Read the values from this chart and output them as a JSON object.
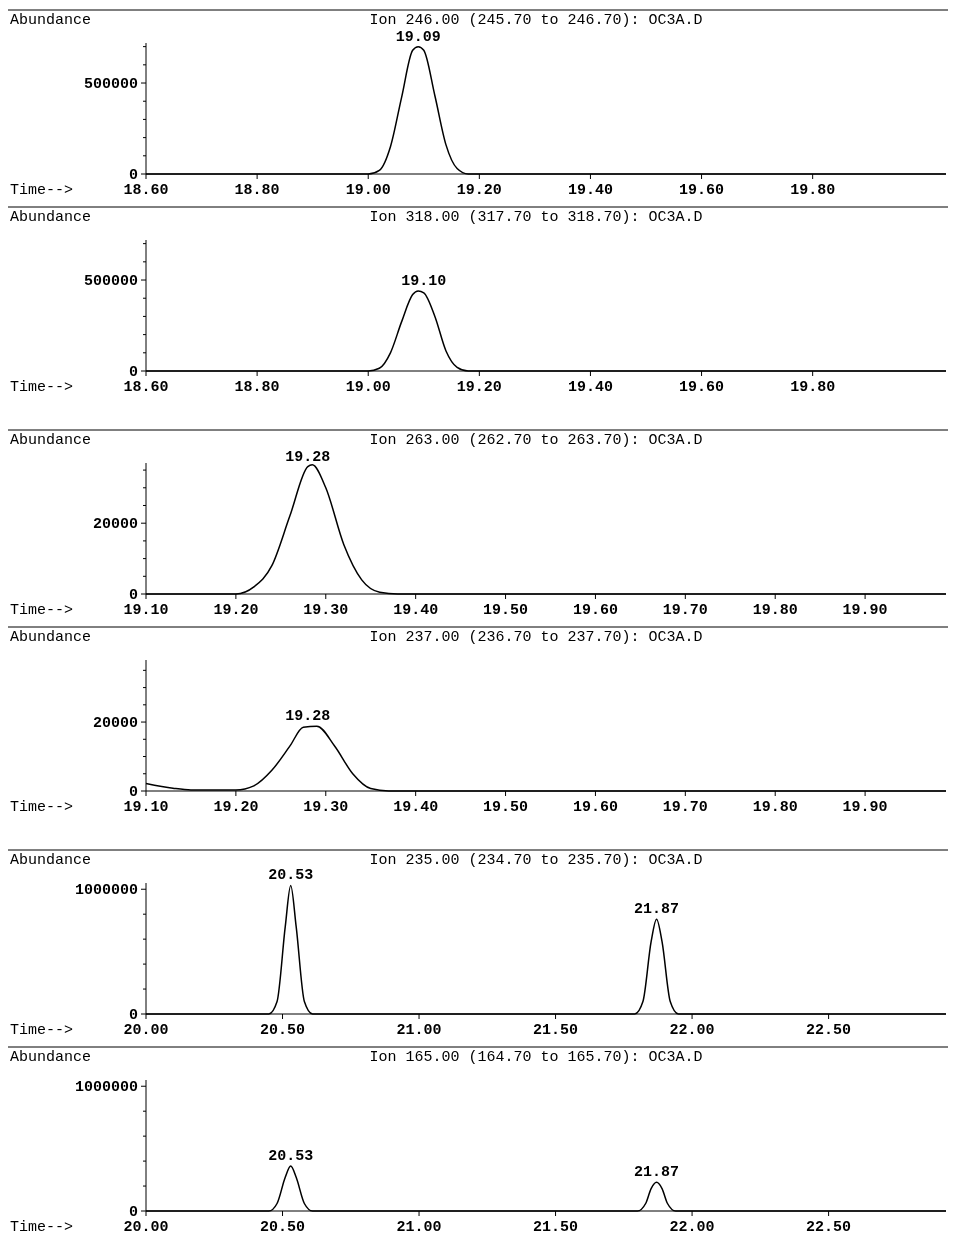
{
  "chart_data": [
    {
      "type": "line",
      "title": "Ion 246.00 (245.70 to 246.70): OC3A.D",
      "xlabel": "Time-->",
      "ylabel": "Abundance",
      "color": "#000000",
      "x": [
        18.6,
        19.0,
        19.02,
        19.04,
        19.06,
        19.08,
        19.09,
        19.1,
        19.12,
        19.14,
        19.16,
        19.18,
        20.04
      ],
      "values": [
        0,
        0,
        20000,
        150000,
        420000,
        680000,
        700000,
        680000,
        430000,
        160000,
        30000,
        0,
        0
      ],
      "xlim": [
        18.6,
        20.04
      ],
      "xticks": [
        {
          "value": 18.6,
          "label": "18.60"
        },
        {
          "value": 18.8,
          "label": "18.80"
        },
        {
          "value": 19.0,
          "label": "19.00"
        },
        {
          "value": 19.2,
          "label": "19.20"
        },
        {
          "value": 19.4,
          "label": "19.40"
        },
        {
          "value": 19.6,
          "label": "19.60"
        },
        {
          "value": 19.8,
          "label": "19.80"
        }
      ],
      "ylim": [
        0,
        720000
      ],
      "yticks": [
        0,
        {
          "value": 100000,
          "label": null
        },
        {
          "value": 200000,
          "label": null
        },
        {
          "value": 300000,
          "label": null
        },
        {
          "value": 400000,
          "label": null
        },
        500000,
        {
          "value": 600000,
          "label": null
        },
        {
          "value": 700000,
          "label": null
        }
      ],
      "annotations": [
        {
          "text": "19.09",
          "x": 19.09,
          "y": 700000
        }
      ]
    },
    {
      "type": "line",
      "title": "Ion 318.00 (317.70 to 318.70): OC3A.D",
      "xlabel": "Time-->",
      "ylabel": "Abundance",
      "color": "#000000",
      "x": [
        18.6,
        19.0,
        19.02,
        19.04,
        19.06,
        19.08,
        19.09,
        19.1,
        19.12,
        19.14,
        19.16,
        19.18,
        20.04
      ],
      "values": [
        0,
        0,
        15000,
        100000,
        270000,
        420000,
        440000,
        430000,
        300000,
        110000,
        20000,
        0,
        0
      ],
      "xlim": [
        18.6,
        20.04
      ],
      "xticks": [
        {
          "value": 18.6,
          "label": "18.60"
        },
        {
          "value": 18.8,
          "label": "18.80"
        },
        {
          "value": 19.0,
          "label": "19.00"
        },
        {
          "value": 19.2,
          "label": "19.20"
        },
        {
          "value": 19.4,
          "label": "19.40"
        },
        {
          "value": 19.6,
          "label": "19.60"
        },
        {
          "value": 19.8,
          "label": "19.80"
        }
      ],
      "ylim": [
        0,
        720000
      ],
      "yticks": [
        0,
        {
          "value": 100000,
          "label": null
        },
        {
          "value": 200000,
          "label": null
        },
        {
          "value": 300000,
          "label": null
        },
        {
          "value": 400000,
          "label": null
        },
        500000,
        {
          "value": 600000,
          "label": null
        },
        {
          "value": 700000,
          "label": null
        }
      ],
      "annotations": [
        {
          "text": "19.10",
          "x": 19.1,
          "y": 440000
        }
      ]
    },
    {
      "type": "line",
      "title": "Ion 263.00 (262.70 to 263.70): OC3A.D",
      "xlabel": "Time-->",
      "ylabel": "Abundance",
      "color": "#000000",
      "x": [
        19.1,
        19.2,
        19.22,
        19.24,
        19.26,
        19.28,
        19.285,
        19.3,
        19.32,
        19.34,
        19.36,
        19.38,
        19.99
      ],
      "values": [
        0,
        0,
        2000,
        8000,
        22000,
        36000,
        36500,
        30000,
        14000,
        4000,
        500,
        0,
        0
      ],
      "xlim": [
        19.1,
        19.99
      ],
      "xticks": [
        {
          "value": 19.1,
          "label": "19.10"
        },
        {
          "value": 19.2,
          "label": "19.20"
        },
        {
          "value": 19.3,
          "label": "19.30"
        },
        {
          "value": 19.4,
          "label": "19.40"
        },
        {
          "value": 19.5,
          "label": "19.50"
        },
        {
          "value": 19.6,
          "label": "19.60"
        },
        {
          "value": 19.7,
          "label": "19.70"
        },
        {
          "value": 19.8,
          "label": "19.80"
        },
        {
          "value": 19.9,
          "label": "19.90"
        }
      ],
      "ylim": [
        0,
        37000
      ],
      "yticks": [
        0,
        {
          "value": 5000,
          "label": null
        },
        {
          "value": 10000,
          "label": null
        },
        {
          "value": 15000,
          "label": null
        },
        20000,
        {
          "value": 25000,
          "label": null
        },
        {
          "value": 30000,
          "label": null
        },
        {
          "value": 35000,
          "label": null
        }
      ],
      "annotations": [
        {
          "text": "19.28",
          "x": 19.28,
          "y": 36000
        }
      ]
    },
    {
      "type": "line",
      "title": "Ion 237.00 (236.70 to 237.70): OC3A.D",
      "xlabel": "Time-->",
      "ylabel": "Abundance",
      "color": "#000000",
      "x": [
        19.1,
        19.13,
        19.15,
        19.2,
        19.22,
        19.24,
        19.26,
        19.275,
        19.29,
        19.31,
        19.33,
        19.35,
        19.37,
        19.99
      ],
      "values": [
        2200,
        800,
        300,
        300,
        1500,
        6000,
        13000,
        18500,
        18800,
        13000,
        5000,
        700,
        0,
        0
      ],
      "xlim": [
        19.1,
        19.99
      ],
      "xticks": [
        {
          "value": 19.1,
          "label": "19.10"
        },
        {
          "value": 19.2,
          "label": "19.20"
        },
        {
          "value": 19.3,
          "label": "19.30"
        },
        {
          "value": 19.4,
          "label": "19.40"
        },
        {
          "value": 19.5,
          "label": "19.50"
        },
        {
          "value": 19.6,
          "label": "19.60"
        },
        {
          "value": 19.7,
          "label": "19.70"
        },
        {
          "value": 19.8,
          "label": "19.80"
        },
        {
          "value": 19.9,
          "label": "19.90"
        }
      ],
      "ylim": [
        0,
        38000
      ],
      "yticks": [
        0,
        {
          "value": 5000,
          "label": null
        },
        {
          "value": 10000,
          "label": null
        },
        {
          "value": 15000,
          "label": null
        },
        20000,
        {
          "value": 25000,
          "label": null
        },
        {
          "value": 30000,
          "label": null
        },
        {
          "value": 35000,
          "label": null
        }
      ],
      "annotations": [
        {
          "text": "19.28",
          "x": 19.28,
          "y": 18800
        }
      ]
    },
    {
      "type": "line",
      "title": "Ion 235.00 (234.70 to 235.70): OC3A.D",
      "xlabel": "Time-->",
      "ylabel": "Abundance",
      "color": "#000000",
      "x": [
        20.0,
        20.45,
        20.48,
        20.51,
        20.53,
        20.55,
        20.58,
        20.61,
        21.79,
        21.82,
        21.85,
        21.87,
        21.89,
        21.92,
        21.95,
        22.93
      ],
      "values": [
        0,
        0,
        100000,
        700000,
        1030000,
        700000,
        100000,
        0,
        0,
        100000,
        580000,
        760000,
        580000,
        100000,
        0,
        0
      ],
      "xlim": [
        20.0,
        22.93
      ],
      "xticks": [
        {
          "value": 20.0,
          "label": "20.00"
        },
        {
          "value": 20.5,
          "label": "20.50"
        },
        {
          "value": 21.0,
          "label": "21.00"
        },
        {
          "value": 21.5,
          "label": "21.50"
        },
        {
          "value": 22.0,
          "label": "22.00"
        },
        {
          "value": 22.5,
          "label": "22.50"
        }
      ],
      "ylim": [
        0,
        1050000
      ],
      "yticks": [
        0,
        {
          "value": 200000,
          "label": null
        },
        {
          "value": 400000,
          "label": null
        },
        {
          "value": 600000,
          "label": null
        },
        {
          "value": 800000,
          "label": null
        },
        1000000
      ],
      "annotations": [
        {
          "text": "20.53",
          "x": 20.53,
          "y": 1030000
        },
        {
          "text": "21.87",
          "x": 21.87,
          "y": 760000
        }
      ]
    },
    {
      "type": "line",
      "title": "Ion 165.00 (164.70 to 165.70): OC3A.D",
      "xlabel": "Time-->",
      "ylabel": "Abundance",
      "color": "#000000",
      "x": [
        20.0,
        20.45,
        20.48,
        20.51,
        20.53,
        20.55,
        20.58,
        20.61,
        21.8,
        21.83,
        21.85,
        21.87,
        21.89,
        21.91,
        21.94,
        22.93
      ],
      "values": [
        0,
        0,
        60000,
        270000,
        360000,
        270000,
        60000,
        0,
        0,
        60000,
        180000,
        230000,
        180000,
        60000,
        0,
        0
      ],
      "xlim": [
        20.0,
        22.93
      ],
      "xticks": [
        {
          "value": 20.0,
          "label": "20.00"
        },
        {
          "value": 20.5,
          "label": "20.50"
        },
        {
          "value": 21.0,
          "label": "21.00"
        },
        {
          "value": 21.5,
          "label": "21.50"
        },
        {
          "value": 22.0,
          "label": "22.00"
        },
        {
          "value": 22.5,
          "label": "22.50"
        }
      ],
      "ylim": [
        0,
        1050000
      ],
      "yticks": [
        0,
        {
          "value": 200000,
          "label": null
        },
        {
          "value": 400000,
          "label": null
        },
        {
          "value": 600000,
          "label": null
        },
        {
          "value": 800000,
          "label": null
        },
        1000000
      ],
      "annotations": [
        {
          "text": "20.53",
          "x": 20.53,
          "y": 360000
        },
        {
          "text": "21.87",
          "x": 21.87,
          "y": 230000
        }
      ]
    }
  ]
}
